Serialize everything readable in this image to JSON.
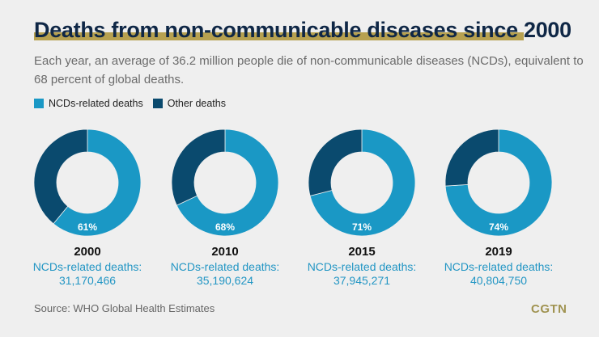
{
  "colors": {
    "ncd": "#1a98c5",
    "other": "#0a4a6e",
    "title": "#0f2746",
    "accent": "#b7a150"
  },
  "chart_data": {
    "type": "pie",
    "variant": "donut",
    "title": "Deaths from non-communicable diseases since 2000",
    "subtitle": "Each year, an average of 36.2 million people die of non-communicable diseases (NCDs), equivalent to 68 percent of global deaths.",
    "legend": {
      "placement": "top-left",
      "entries": [
        "NCDs-related deaths",
        "Other deaths"
      ]
    },
    "charts": [
      {
        "year": "2000",
        "ncd_percent": 61,
        "label": "61%",
        "caption": "NCDs-related deaths:",
        "deaths": "31,170,466"
      },
      {
        "year": "2010",
        "ncd_percent": 68,
        "label": "68%",
        "caption": "NCDs-related deaths:",
        "deaths": "35,190,624"
      },
      {
        "year": "2015",
        "ncd_percent": 71,
        "label": "71%",
        "caption": "NCDs-related deaths:",
        "deaths": "37,945,271"
      },
      {
        "year": "2019",
        "ncd_percent": 74,
        "label": "74%",
        "caption": "NCDs-related deaths:",
        "deaths": "40,804,750"
      }
    ]
  },
  "source": "Source: WHO Global Health Estimates",
  "logo": "CGTN"
}
